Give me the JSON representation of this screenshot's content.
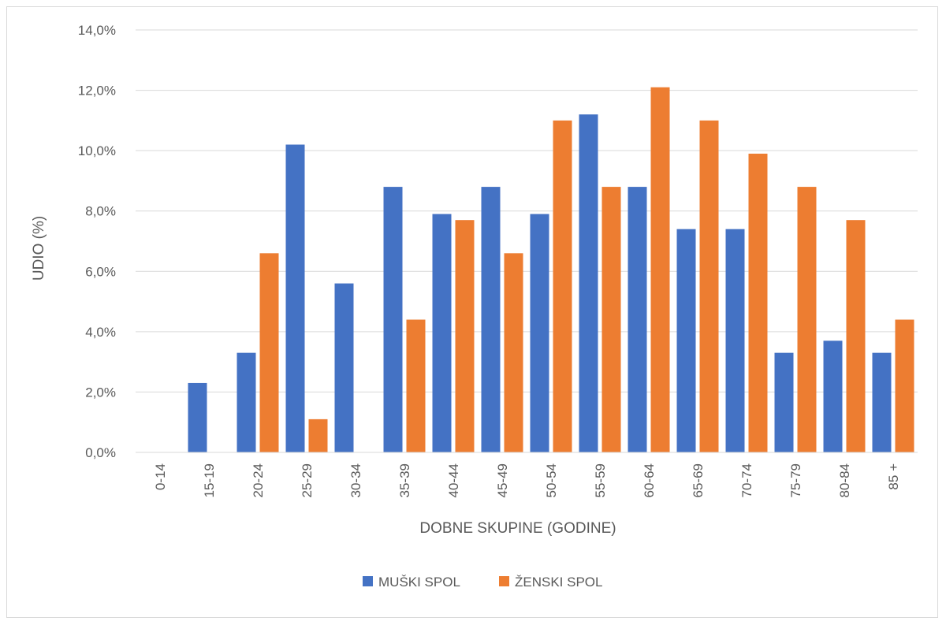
{
  "chart_data": {
    "type": "bar",
    "title": "",
    "xlabel": "DOBNE SKUPINE (GODINE)",
    "ylabel": "UDIO (%)",
    "ylim": [
      0,
      14
    ],
    "y_ticks": [
      0,
      2,
      4,
      6,
      8,
      10,
      12,
      14
    ],
    "y_tick_labels": [
      "0,0%",
      "2,0%",
      "4,0%",
      "6,0%",
      "8,0%",
      "10,0%",
      "12,0%",
      "14,0%"
    ],
    "grid": true,
    "legend_position": "bottom",
    "categories": [
      "0-14",
      "15-19",
      "20-24",
      "25-29",
      "30-34",
      "35-39",
      "40-44",
      "45-49",
      "50-54",
      "55-59",
      "60-64",
      "65-69",
      "70-74",
      "75-79",
      "80-84",
      "85 +"
    ],
    "series": [
      {
        "name": "MUŠKI SPOL",
        "color": "#4472c4",
        "values": [
          0,
          2.3,
          3.3,
          10.2,
          5.6,
          8.8,
          7.9,
          8.8,
          7.9,
          11.2,
          8.8,
          7.4,
          7.4,
          3.3,
          3.7,
          3.3
        ]
      },
      {
        "name": "ŽENSKI SPOL",
        "color": "#ed7d31",
        "values": [
          0,
          0,
          6.6,
          1.1,
          0,
          4.4,
          7.7,
          6.6,
          11.0,
          8.8,
          12.1,
          11.0,
          9.9,
          8.8,
          7.7,
          4.4
        ]
      }
    ]
  }
}
